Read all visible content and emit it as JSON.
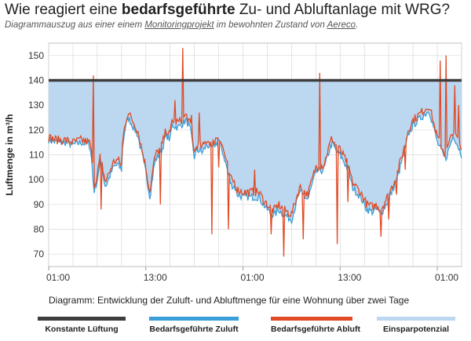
{
  "header": {
    "title_pre": "Wie reagiert eine ",
    "title_bold": "bedarfsgeführte",
    "title_post": " Zu- und Abluftanlage mit WRG?",
    "subtitle_pre": "Diagrammauszug aus einer einem ",
    "subtitle_link1": "Monitoringprojekt",
    "subtitle_mid": " im bewohnten Zustand von ",
    "subtitle_link2": "Aereco",
    "subtitle_end": "."
  },
  "caption": "Diagramm: Entwicklung der Zuluft- und Abluftmenge für eine Wohnung über zwei Tage",
  "colors": {
    "constant": "#3d3d3d",
    "supply": "#3a9fd8",
    "exhaust": "#e04a24",
    "savings": "#bcd7f0",
    "grid": "#d9d9d9"
  },
  "chart_data": {
    "type": "line",
    "ylabel": "Luftmenge in m³/h",
    "ylim": [
      65,
      155
    ],
    "yticks": [
      70,
      80,
      90,
      100,
      110,
      120,
      130,
      140,
      150
    ],
    "xlim": [
      0,
      51
    ],
    "xticks": [
      {
        "pos": 0,
        "label": "01:00"
      },
      {
        "pos": 12,
        "label": "13:00"
      },
      {
        "pos": 24,
        "label": "01:00"
      },
      {
        "pos": 36,
        "label": "13:00"
      },
      {
        "pos": 48,
        "label": "01:00"
      },
      {
        "pos": 60,
        "label": "13:00"
      }
    ],
    "constant_value": 140,
    "series": [
      {
        "name": "Bedarfsgeführte Zuluft",
        "key": "supply",
        "x": [
          0,
          1,
          2,
          3,
          4,
          5,
          5.2,
          5.6,
          6,
          6.4,
          6.6,
          7,
          8,
          8.5,
          9,
          9.1,
          9.4,
          9.8,
          10,
          11,
          12,
          12.5,
          13,
          13.2,
          14,
          14.5,
          15,
          15.2,
          16,
          17,
          17.5,
          18,
          18.3,
          19,
          19.5,
          20,
          20.3,
          21,
          21.5,
          22,
          22.5,
          23,
          23.3,
          24,
          25,
          26,
          26.5,
          27,
          27.5,
          28,
          28.4,
          29,
          29.5,
          30,
          31,
          32,
          33,
          34,
          34.5,
          35,
          35.4,
          36,
          37,
          37.5,
          38,
          38.5,
          39,
          39.3,
          40,
          40.5,
          41,
          42,
          43,
          44,
          44.4,
          45,
          46,
          47,
          48,
          49,
          50,
          51
        ],
        "values": [
          116,
          115,
          115,
          114,
          115,
          114,
          112,
          95,
          100,
          108,
          104,
          97,
          105,
          106,
          104,
          112,
          120,
          125,
          124,
          118,
          103,
          93,
          105,
          108,
          112,
          118,
          116,
          122,
          121,
          124,
          120,
          109,
          112,
          111,
          114,
          113,
          113,
          116,
          111,
          105,
          98,
          97,
          94,
          93,
          93,
          93,
          90,
          88,
          86,
          86,
          88,
          86,
          85,
          84,
          95,
          92,
          103,
          104,
          110,
          115,
          112,
          110,
          104,
          97,
          95,
          93,
          90,
          88,
          87,
          88,
          86,
          92,
          100,
          112,
          118,
          122,
          125,
          128,
          115,
          108,
          118,
          110
        ]
      },
      {
        "name": "Bedarfsgeführte Abluft",
        "key": "exhaust",
        "x": [
          0,
          1,
          2,
          3,
          4,
          5,
          5.2,
          5.6,
          6,
          6.4,
          6.6,
          7,
          8,
          8.5,
          9,
          9.1,
          9.4,
          9.8,
          10,
          11,
          12,
          12.5,
          13,
          13.2,
          14,
          14.5,
          15,
          15.2,
          16,
          17,
          17.5,
          18,
          18.3,
          19,
          19.5,
          20,
          20.3,
          21,
          21.5,
          22,
          22.5,
          23,
          23.3,
          24,
          25,
          26,
          26.5,
          27,
          27.5,
          28,
          28.4,
          29,
          29.5,
          30,
          31,
          32,
          33,
          34,
          34.5,
          35,
          35.4,
          36,
          37,
          37.5,
          38,
          38.5,
          39,
          39.3,
          40,
          40.5,
          41,
          42,
          43,
          44,
          44.4,
          45,
          46,
          47,
          48,
          49,
          50,
          51
        ],
        "values": [
          117,
          116,
          116,
          115,
          116,
          115,
          114,
          97,
          102,
          110,
          106,
          99,
          107,
          108,
          106,
          114,
          122,
          127,
          126,
          120,
          105,
          95,
          107,
          110,
          114,
          120,
          118,
          124,
          123,
          126,
          122,
          111,
          114,
          113,
          116,
          115,
          115,
          118,
          113,
          107,
          100,
          99,
          96,
          95,
          95,
          95,
          92,
          90,
          88,
          88,
          90,
          88,
          87,
          86,
          97,
          94,
          105,
          106,
          112,
          117,
          114,
          112,
          106,
          99,
          97,
          95,
          92,
          90,
          89,
          90,
          88,
          94,
          102,
          114,
          120,
          124,
          127,
          130,
          117,
          110,
          120,
          112
        ],
        "spikes": [
          [
            5.5,
            142
          ],
          [
            6.5,
            88
          ],
          [
            13.8,
            90
          ],
          [
            15.6,
            132
          ],
          [
            16.6,
            153
          ],
          [
            17.6,
            126
          ],
          [
            18.6,
            127
          ],
          [
            20.2,
            78
          ],
          [
            21,
            105
          ],
          [
            22.2,
            80
          ],
          [
            25.5,
            104
          ],
          [
            27.5,
            78
          ],
          [
            29,
            69
          ],
          [
            31.5,
            76
          ],
          [
            33.5,
            143
          ],
          [
            35.6,
            74
          ],
          [
            37,
            91
          ],
          [
            41,
            77
          ],
          [
            42,
            84
          ],
          [
            43,
            94
          ],
          [
            44,
            104
          ],
          [
            48.4,
            148
          ],
          [
            49.1,
            150
          ],
          [
            50.1,
            138
          ],
          [
            50.6,
            130
          ]
        ]
      }
    ]
  },
  "legend": [
    {
      "key": "constant",
      "label": "Konstante Lüftung"
    },
    {
      "key": "supply",
      "label": "Bedarfsgeführte Zuluft"
    },
    {
      "key": "exhaust",
      "label": "Bedarfsgeführte Abluft"
    },
    {
      "key": "savings",
      "label": "Einsparpotenzial"
    }
  ]
}
